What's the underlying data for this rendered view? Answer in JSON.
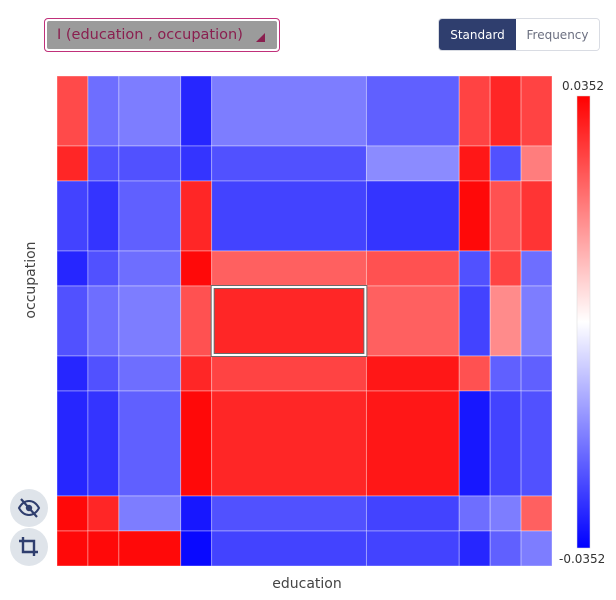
{
  "selector": {
    "label": "I (education , occupation)"
  },
  "toggle": {
    "standard_label": "Standard",
    "frequency_label": "Frequency",
    "active": "Standard"
  },
  "icons": {
    "hide": "eye-off-icon",
    "crop": "crop-icon"
  },
  "colors": {
    "accent": "#2f3e6e",
    "selector_border": "#c0307a",
    "low": "#0000ff",
    "mid": "#ffffff",
    "high": "#ff0000"
  },
  "chart_data": {
    "type": "heatmap",
    "title": "",
    "xlabel": "education",
    "ylabel": "occupation",
    "colorbar": {
      "min": -0.0352,
      "max": 0.0352,
      "min_label": "-0.0352",
      "max_label": "0.0352"
    },
    "x_category_weights": [
      1,
      1,
      2,
      1,
      5,
      3,
      1,
      1,
      1
    ],
    "y_category_weights": [
      2,
      1,
      2,
      1,
      2,
      1,
      3,
      1,
      1
    ],
    "highlight": {
      "row": 4,
      "col": 4
    },
    "values": [
      [
        0.025,
        -0.02,
        -0.018,
        -0.03,
        -0.018,
        -0.022,
        0.026,
        0.03,
        0.026
      ],
      [
        0.03,
        -0.024,
        -0.024,
        -0.028,
        -0.024,
        -0.016,
        0.032,
        -0.024,
        0.018
      ],
      [
        -0.026,
        -0.028,
        -0.022,
        0.03,
        -0.026,
        -0.028,
        0.034,
        0.024,
        0.028
      ],
      [
        -0.03,
        -0.024,
        -0.02,
        0.034,
        0.022,
        0.024,
        -0.024,
        0.026,
        -0.02
      ],
      [
        -0.024,
        -0.02,
        -0.018,
        0.024,
        0.03,
        0.022,
        -0.026,
        0.016,
        -0.018
      ],
      [
        -0.03,
        -0.024,
        -0.02,
        0.03,
        0.026,
        0.032,
        0.024,
        -0.022,
        -0.022
      ],
      [
        -0.03,
        -0.028,
        -0.022,
        0.034,
        0.03,
        0.032,
        -0.032,
        -0.026,
        -0.024
      ],
      [
        0.034,
        0.03,
        -0.018,
        -0.032,
        -0.024,
        -0.026,
        -0.02,
        -0.018,
        0.022
      ],
      [
        0.034,
        0.034,
        0.034,
        -0.034,
        -0.026,
        -0.026,
        -0.03,
        -0.022,
        -0.018
      ]
    ]
  }
}
